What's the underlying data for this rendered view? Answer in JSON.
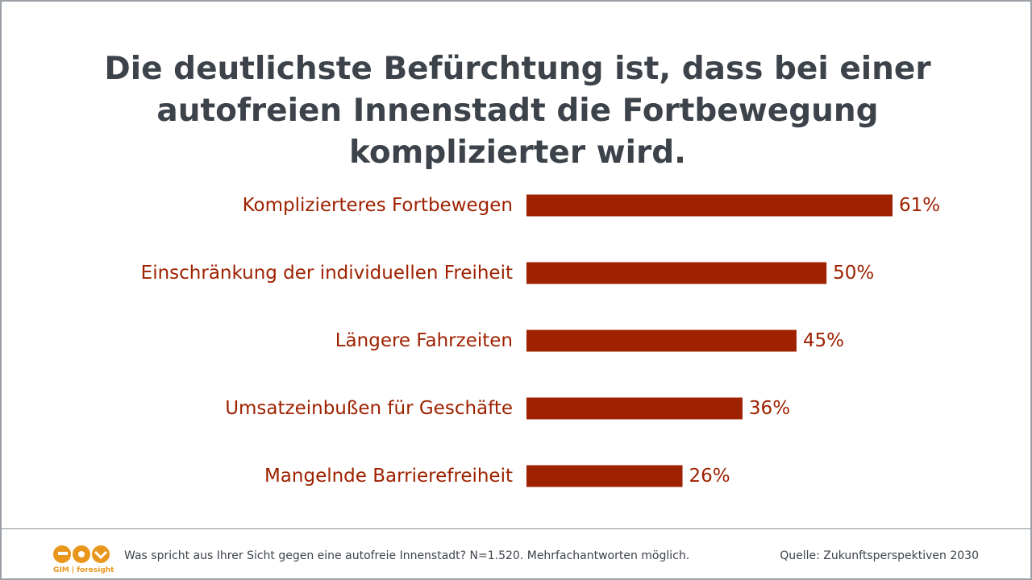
{
  "title": "Die deutlichste Befürchtung ist, dass bei einer autofreien Innenstadt die Fortbewegung komplizierter wird.",
  "colors": {
    "bar": "#9e2100",
    "label": "#9e2100",
    "value": "#9e2100",
    "title": "#3d434a",
    "logo": "#e8961c"
  },
  "chart_data": {
    "type": "bar",
    "orientation": "horizontal",
    "categories": [
      "Komplizierteres Fortbewegen",
      "Einschränkung der individuellen Freiheit",
      "Längere Fahrzeiten",
      "Umsatzeinbußen für Geschäfte",
      "Mangelnde Barrierefreiheit"
    ],
    "values": [
      61,
      50,
      45,
      36,
      26
    ],
    "value_labels": [
      "61%",
      "50%",
      "45%",
      "36%",
      "26%"
    ],
    "unit": "%",
    "title": "Die deutlichste Befürchtung ist, dass bei einer autofreien Innenstadt die Fortbewegung komplizierter wird.",
    "xlim": [
      0,
      61
    ],
    "grid": false,
    "legend": "none"
  },
  "footer": {
    "logo_text": "GIM | foresight",
    "footnote": "Was spricht aus Ihrer Sicht gegen eine autofreie Innenstadt? N=1.520. Mehrfachantworten möglich.",
    "source": "Quelle: Zukunftsperspektiven 2030"
  }
}
